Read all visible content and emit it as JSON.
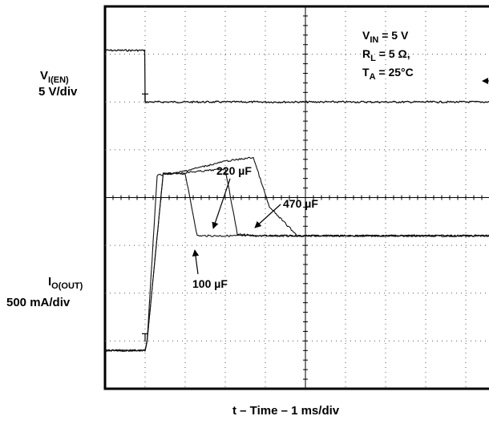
{
  "chart_data": {
    "type": "line",
    "title": "",
    "xlabel": "t – Time – 1 ms/div",
    "x_divisions": 10,
    "y_divisions": 8,
    "grid": true,
    "conditions": {
      "vin_main": "V",
      "vin_sub": "IN",
      "vin_rest": " = 5 V",
      "rl_main": "R",
      "rl_sub": "L",
      "rl_rest": " = 5 Ω,",
      "ta_main": "T",
      "ta_sub": "A",
      "ta_rest": " = 25°C"
    },
    "channels": [
      {
        "name_main": "V",
        "name_sub": "I(EN)",
        "scale": "5 V/div"
      },
      {
        "name_main": "I",
        "name_sub": "O(OUT)",
        "scale": "500 mA/div"
      }
    ],
    "series": [
      {
        "name": "V_I(EN)",
        "x": [
          0,
          0.5,
          0.99,
          1.0,
          3.0,
          10.0
        ],
        "y": [
          5.4,
          5.4,
          5.4,
          0.0,
          0.0,
          0.0
        ]
      },
      {
        "name": "100 µF",
        "x": [
          0,
          1.0,
          1.05,
          1.3,
          1.55,
          2.0,
          2.3,
          3.0,
          4.0,
          10.0
        ],
        "y": [
          -0.1,
          -0.1,
          0.0,
          1.73,
          1.75,
          1.75,
          1.1,
          1.1,
          1.1,
          1.1
        ]
      },
      {
        "name": "220 µF",
        "x": [
          0,
          1.0,
          1.05,
          1.45,
          1.7,
          2.5,
          3.0,
          3.3,
          3.8,
          10.0
        ],
        "y": [
          -0.1,
          -0.1,
          0.0,
          1.75,
          1.75,
          1.78,
          1.8,
          1.12,
          1.1,
          1.1
        ]
      },
      {
        "name": "470 µF",
        "x": [
          0,
          1.0,
          1.05,
          1.45,
          1.7,
          3.0,
          3.7,
          4.1,
          4.8,
          10.0
        ],
        "y": [
          -0.1,
          -0.1,
          0.0,
          1.75,
          1.75,
          1.88,
          1.92,
          1.4,
          1.1,
          1.1
        ]
      }
    ],
    "annotations": [
      {
        "text": "220 µF"
      },
      {
        "text": "470 µF"
      },
      {
        "text": "100 µF"
      }
    ]
  }
}
